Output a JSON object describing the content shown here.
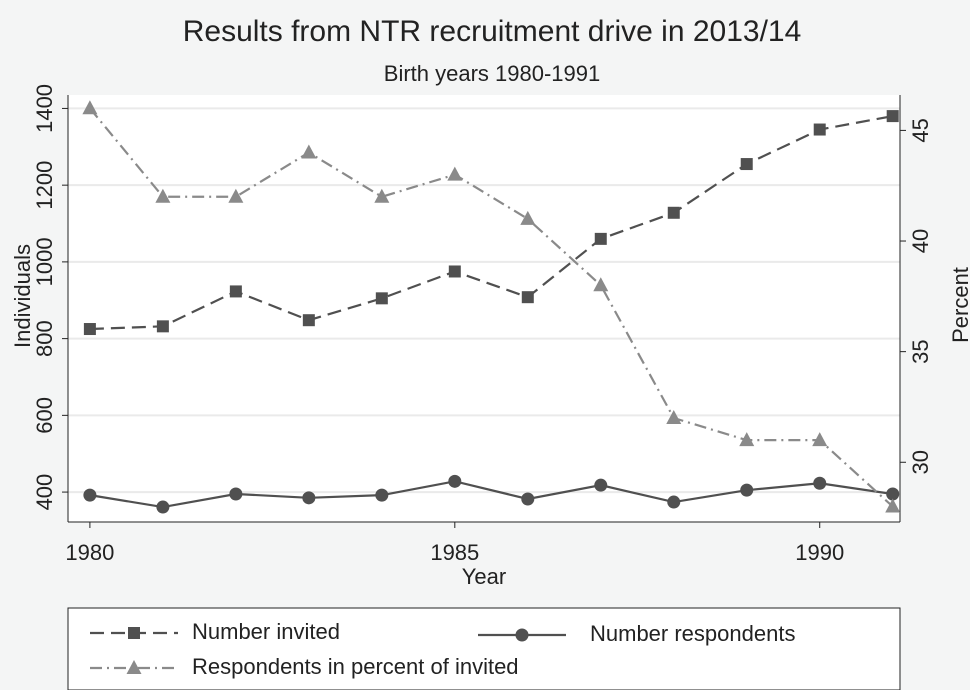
{
  "chart_data": {
    "type": "line",
    "title": "Results from NTR recruitment drive in 2013/14",
    "subtitle": "Birth years 1980-1991",
    "x_label": "Year",
    "y_label": "Individuals",
    "y2_label": "Percent",
    "x": [
      1980,
      1981,
      1982,
      1983,
      1984,
      1985,
      1986,
      1987,
      1988,
      1989,
      1990,
      1991
    ],
    "series": [
      {
        "name": "Number invited",
        "color": "#505050",
        "marker": "square",
        "line_style": "dashed",
        "axis": "y",
        "values": [
          825,
          832,
          923,
          848,
          905,
          975,
          908,
          1060,
          1128,
          1255,
          1345,
          1380
        ]
      },
      {
        "name": "Number respondents",
        "color": "#505050",
        "marker": "circle",
        "line_style": "solid",
        "axis": "y",
        "values": [
          392,
          361,
          395,
          385,
          392,
          428,
          382,
          418,
          374,
          405,
          423,
          395
        ]
      },
      {
        "name": "Respondents in percent of invited",
        "color": "#8a8a8a",
        "marker": "triangle",
        "line_style": "dashdot",
        "axis": "y2",
        "values": [
          46,
          42,
          42,
          44,
          42,
          43,
          41,
          38,
          32,
          31,
          31,
          28
        ]
      }
    ],
    "xlim": [
      1979.7,
      1991.1
    ],
    "xticks": [
      1980,
      1985,
      1990
    ],
    "ylim": [
      322,
      1435
    ],
    "yticks": [
      400,
      600,
      800,
      1000,
      1200,
      1400
    ],
    "y2lim": [
      27.3,
      46.6
    ],
    "y2ticks": [
      30,
      35,
      40,
      45
    ],
    "grid": true,
    "legend_position": "bottom"
  }
}
